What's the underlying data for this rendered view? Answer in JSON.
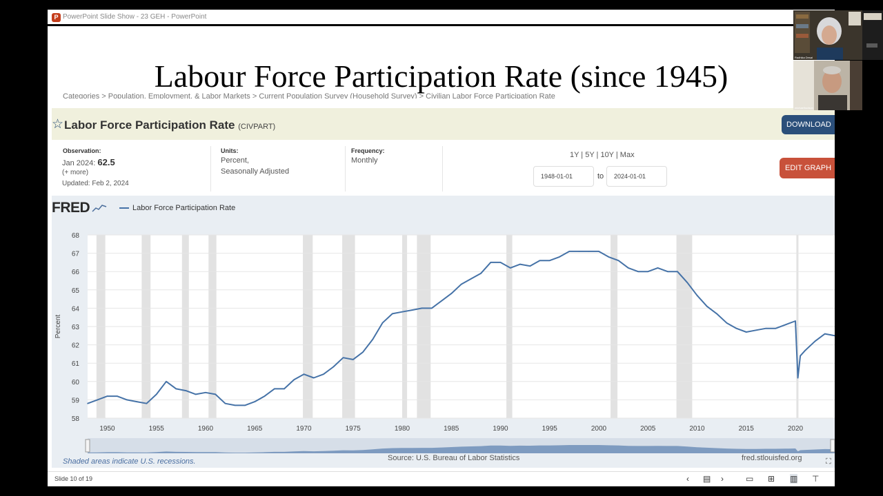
{
  "window": {
    "app_title": "PowerPoint Slide Show  -  23 GEH  -  PowerPoint",
    "minimize": "—"
  },
  "slide": {
    "title": "Labour Force Participation Rate (since 1945)",
    "breadcrumb": "Categories > Population, Employment, & Labor Markets > Current Population Survey (Household Survey) > Civilian Labor Force Participation Rate"
  },
  "fred": {
    "series_name": "Labor Force Participation Rate",
    "series_code": "(CIVPART)",
    "download_label": "DOWNLOAD",
    "edit_graph_label": "EDIT GRAPH",
    "observation_label": "Observation:",
    "observation_date": "Jan 2024:",
    "observation_value": "62.5",
    "more_link": "(+ more)",
    "updated": "Updated: Feb 2, 2024",
    "units_label": "Units:",
    "units_line1": "Percent,",
    "units_line2": "Seasonally Adjusted",
    "frequency_label": "Frequency:",
    "frequency_value": "Monthly",
    "range_links": "1Y | 5Y | 10Y | Max",
    "start_date": "1948-01-01",
    "end_date": "2024-01-01",
    "to_label": "to",
    "logo": "FRED",
    "legend_label": "Labor Force Participation Rate",
    "y_axis_label": "Percent",
    "shaded_note": "Shaded areas indicate U.S. recessions.",
    "source": "Source: U.S. Bureau of Labor Statistics",
    "url": "fred.stlouisfed.org"
  },
  "chart_data": {
    "type": "line",
    "title": "",
    "xlabel": "",
    "ylabel": "Percent",
    "x_ticks": [
      1950,
      1955,
      1960,
      1965,
      1970,
      1975,
      1980,
      1985,
      1990,
      1995,
      2000,
      2005,
      2010,
      2015,
      2020
    ],
    "y_ticks": [
      58,
      59,
      60,
      61,
      62,
      63,
      64,
      65,
      66,
      67,
      68
    ],
    "xlim": [
      1948,
      2024
    ],
    "ylim": [
      58,
      68
    ],
    "series": [
      {
        "name": "Labor Force Participation Rate",
        "color": "#4572a7",
        "x": [
          1948,
          1949,
          1950,
          1951,
          1952,
          1953,
          1954,
          1955,
          1956,
          1957,
          1958,
          1959,
          1960,
          1961,
          1962,
          1963,
          1964,
          1965,
          1966,
          1967,
          1968,
          1969,
          1970,
          1971,
          1972,
          1973,
          1974,
          1975,
          1976,
          1977,
          1978,
          1979,
          1980,
          1981,
          1982,
          1983,
          1984,
          1985,
          1986,
          1987,
          1988,
          1989,
          1990,
          1991,
          1992,
          1993,
          1994,
          1995,
          1996,
          1997,
          1998,
          1999,
          2000,
          2001,
          2002,
          2003,
          2004,
          2005,
          2006,
          2007,
          2008,
          2009,
          2010,
          2011,
          2012,
          2013,
          2014,
          2015,
          2016,
          2017,
          2018,
          2019,
          2020,
          2020.25,
          2020.5,
          2021,
          2022,
          2023,
          2024
        ],
        "values": [
          58.8,
          59.0,
          59.2,
          59.2,
          59.0,
          58.9,
          58.8,
          59.3,
          60.0,
          59.6,
          59.5,
          59.3,
          59.4,
          59.3,
          58.8,
          58.7,
          58.7,
          58.9,
          59.2,
          59.6,
          59.6,
          60.1,
          60.4,
          60.2,
          60.4,
          60.8,
          61.3,
          61.2,
          61.6,
          62.3,
          63.2,
          63.7,
          63.8,
          63.9,
          64.0,
          64.0,
          64.4,
          64.8,
          65.3,
          65.6,
          65.9,
          66.5,
          66.5,
          66.2,
          66.4,
          66.3,
          66.6,
          66.6,
          66.8,
          67.1,
          67.1,
          67.1,
          67.1,
          66.8,
          66.6,
          66.2,
          66.0,
          66.0,
          66.2,
          66.0,
          66.0,
          65.4,
          64.7,
          64.1,
          63.7,
          63.2,
          62.9,
          62.7,
          62.8,
          62.9,
          62.9,
          63.1,
          63.3,
          60.2,
          61.4,
          61.7,
          62.2,
          62.6,
          62.5
        ]
      }
    ],
    "recessions": [
      [
        1948.9,
        1949.8
      ],
      [
        1953.5,
        1954.4
      ],
      [
        1957.6,
        1958.3
      ],
      [
        1960.3,
        1961.1
      ],
      [
        1969.9,
        1970.9
      ],
      [
        1973.9,
        1975.2
      ],
      [
        1980.0,
        1980.5
      ],
      [
        1981.5,
        1982.9
      ],
      [
        1990.6,
        1991.2
      ],
      [
        2001.2,
        2001.9
      ],
      [
        2007.9,
        2009.5
      ],
      [
        2020.1,
        2020.3
      ]
    ]
  }
}
